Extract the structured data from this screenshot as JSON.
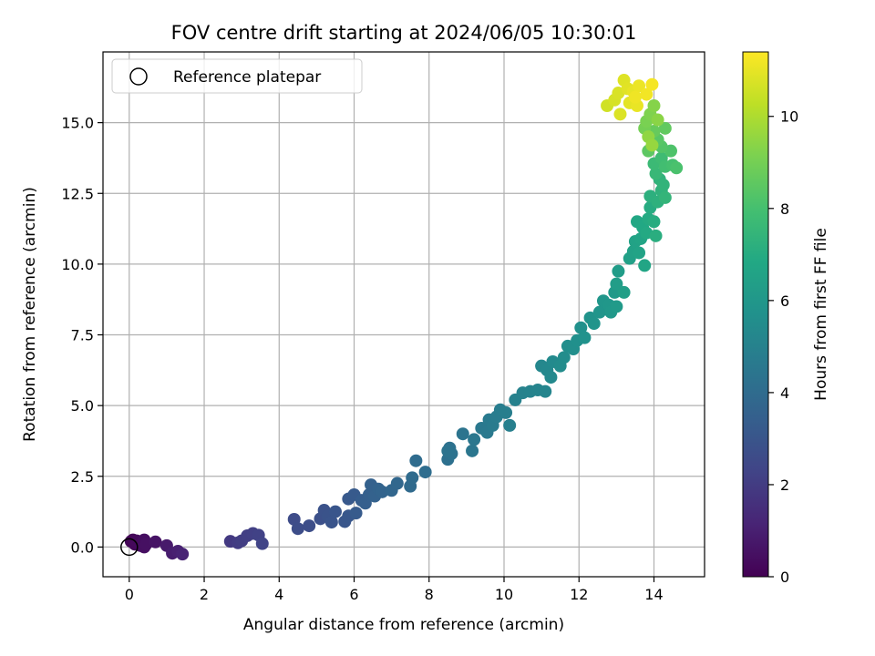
{
  "chart_data": {
    "type": "scatter",
    "title": "FOV centre drift starting at 2024/06/05 10:30:01",
    "xlabel": "Angular distance from reference (arcmin)",
    "ylabel": "Rotation from reference (arcmin)",
    "xlim": [
      -0.7,
      15.35
    ],
    "ylim": [
      -1.05,
      17.5
    ],
    "xticks": [
      0,
      2,
      4,
      6,
      8,
      10,
      12,
      14
    ],
    "xtick_labels": [
      "0",
      "2",
      "4",
      "6",
      "8",
      "10",
      "12",
      "14"
    ],
    "yticks": [
      0.0,
      2.5,
      5.0,
      7.5,
      10.0,
      12.5,
      15.0
    ],
    "ytick_labels": [
      "0.0",
      "2.5",
      "5.0",
      "7.5",
      "10.0",
      "12.5",
      "15.0"
    ],
    "grid": true,
    "legend": {
      "placement": "top-left",
      "entries": [
        "Reference platepar"
      ]
    },
    "reference_point": {
      "x": 0.0,
      "y": 0.0,
      "marker": "open-circle",
      "edge_color": "#000000"
    },
    "colormap": "viridis",
    "colorbar": {
      "label": "Hours from first FF file",
      "min": 0,
      "max": 11.4,
      "ticks": [
        0,
        2,
        4,
        6,
        8,
        10
      ],
      "tick_labels": [
        "0",
        "2",
        "4",
        "6",
        "8",
        "10"
      ]
    },
    "points": [
      {
        "x": 0.05,
        "y": 0.2,
        "c": 0.1
      },
      {
        "x": 0.1,
        "y": 0.25,
        "c": 0.15
      },
      {
        "x": 0.15,
        "y": 0.1,
        "c": 0.2
      },
      {
        "x": 0.2,
        "y": 0.22,
        "c": 0.25
      },
      {
        "x": 0.3,
        "y": 0.05,
        "c": 0.3
      },
      {
        "x": 0.35,
        "y": 0.15,
        "c": 0.35
      },
      {
        "x": 0.4,
        "y": 0.25,
        "c": 0.4
      },
      {
        "x": 0.4,
        "y": 0.0,
        "c": 0.45
      },
      {
        "x": 0.45,
        "y": 0.1,
        "c": 0.5
      },
      {
        "x": 0.7,
        "y": 0.18,
        "c": 0.6
      },
      {
        "x": 1.0,
        "y": 0.05,
        "c": 0.8
      },
      {
        "x": 1.15,
        "y": -0.22,
        "c": 0.9
      },
      {
        "x": 1.3,
        "y": -0.15,
        "c": 1.0
      },
      {
        "x": 1.42,
        "y": -0.25,
        "c": 1.1
      },
      {
        "x": 2.7,
        "y": 0.2,
        "c": 1.9
      },
      {
        "x": 2.9,
        "y": 0.15,
        "c": 2.0
      },
      {
        "x": 3.0,
        "y": 0.22,
        "c": 2.05
      },
      {
        "x": 3.15,
        "y": 0.4,
        "c": 2.1
      },
      {
        "x": 3.3,
        "y": 0.48,
        "c": 2.15
      },
      {
        "x": 3.45,
        "y": 0.42,
        "c": 2.2
      },
      {
        "x": 3.55,
        "y": 0.12,
        "c": 2.3
      },
      {
        "x": 4.4,
        "y": 0.98,
        "c": 2.6
      },
      {
        "x": 4.5,
        "y": 0.65,
        "c": 2.65
      },
      {
        "x": 4.8,
        "y": 0.75,
        "c": 2.7
      },
      {
        "x": 5.1,
        "y": 1.0,
        "c": 2.8
      },
      {
        "x": 5.2,
        "y": 1.3,
        "c": 2.85
      },
      {
        "x": 5.3,
        "y": 1.1,
        "c": 2.9
      },
      {
        "x": 5.4,
        "y": 0.88,
        "c": 2.95
      },
      {
        "x": 5.5,
        "y": 1.25,
        "c": 3.0
      },
      {
        "x": 5.75,
        "y": 0.9,
        "c": 3.05
      },
      {
        "x": 5.85,
        "y": 1.1,
        "c": 3.1
      },
      {
        "x": 5.85,
        "y": 1.7,
        "c": 3.15
      },
      {
        "x": 6.0,
        "y": 1.85,
        "c": 3.2
      },
      {
        "x": 6.05,
        "y": 1.2,
        "c": 3.25
      },
      {
        "x": 6.2,
        "y": 1.65,
        "c": 3.35
      },
      {
        "x": 6.3,
        "y": 1.55,
        "c": 3.4
      },
      {
        "x": 6.4,
        "y": 1.85,
        "c": 3.45
      },
      {
        "x": 6.45,
        "y": 2.2,
        "c": 3.5
      },
      {
        "x": 6.55,
        "y": 1.8,
        "c": 3.55
      },
      {
        "x": 6.65,
        "y": 2.05,
        "c": 3.6
      },
      {
        "x": 6.75,
        "y": 1.95,
        "c": 3.65
      },
      {
        "x": 7.0,
        "y": 2.0,
        "c": 3.75
      },
      {
        "x": 7.15,
        "y": 2.25,
        "c": 3.8
      },
      {
        "x": 7.5,
        "y": 2.15,
        "c": 3.9
      },
      {
        "x": 7.55,
        "y": 2.45,
        "c": 3.95
      },
      {
        "x": 7.65,
        "y": 3.05,
        "c": 4.0
      },
      {
        "x": 7.9,
        "y": 2.65,
        "c": 4.05
      },
      {
        "x": 8.5,
        "y": 3.1,
        "c": 4.2
      },
      {
        "x": 8.55,
        "y": 3.5,
        "c": 4.25
      },
      {
        "x": 8.6,
        "y": 3.3,
        "c": 4.3
      },
      {
        "x": 8.5,
        "y": 3.4,
        "c": 4.32
      },
      {
        "x": 8.9,
        "y": 4.0,
        "c": 4.4
      },
      {
        "x": 9.15,
        "y": 3.4,
        "c": 4.45
      },
      {
        "x": 9.2,
        "y": 3.8,
        "c": 4.5
      },
      {
        "x": 9.4,
        "y": 4.2,
        "c": 4.55
      },
      {
        "x": 9.55,
        "y": 4.05,
        "c": 4.6
      },
      {
        "x": 9.6,
        "y": 4.5,
        "c": 4.65
      },
      {
        "x": 9.7,
        "y": 4.3,
        "c": 4.7
      },
      {
        "x": 9.8,
        "y": 4.6,
        "c": 4.75
      },
      {
        "x": 9.9,
        "y": 4.85,
        "c": 4.8
      },
      {
        "x": 10.05,
        "y": 4.75,
        "c": 4.85
      },
      {
        "x": 10.15,
        "y": 4.3,
        "c": 4.9
      },
      {
        "x": 10.3,
        "y": 5.2,
        "c": 4.95
      },
      {
        "x": 10.5,
        "y": 5.45,
        "c": 5.0
      },
      {
        "x": 10.7,
        "y": 5.5,
        "c": 5.05
      },
      {
        "x": 10.9,
        "y": 5.55,
        "c": 5.1
      },
      {
        "x": 11.1,
        "y": 5.5,
        "c": 5.15
      },
      {
        "x": 11.0,
        "y": 6.4,
        "c": 5.25
      },
      {
        "x": 11.15,
        "y": 6.25,
        "c": 5.3
      },
      {
        "x": 11.25,
        "y": 6.0,
        "c": 5.35
      },
      {
        "x": 11.3,
        "y": 6.55,
        "c": 5.4
      },
      {
        "x": 11.5,
        "y": 6.4,
        "c": 5.45
      },
      {
        "x": 11.6,
        "y": 6.7,
        "c": 5.5
      },
      {
        "x": 11.7,
        "y": 7.1,
        "c": 5.55
      },
      {
        "x": 11.85,
        "y": 7.0,
        "c": 5.6
      },
      {
        "x": 11.95,
        "y": 7.3,
        "c": 5.65
      },
      {
        "x": 12.05,
        "y": 7.75,
        "c": 5.7
      },
      {
        "x": 12.15,
        "y": 7.4,
        "c": 5.75
      },
      {
        "x": 12.3,
        "y": 8.1,
        "c": 5.8
      },
      {
        "x": 12.4,
        "y": 7.9,
        "c": 5.85
      },
      {
        "x": 12.55,
        "y": 8.3,
        "c": 5.9
      },
      {
        "x": 12.65,
        "y": 8.7,
        "c": 5.95
      },
      {
        "x": 12.8,
        "y": 8.55,
        "c": 6.0
      },
      {
        "x": 12.85,
        "y": 8.3,
        "c": 6.05
      },
      {
        "x": 12.95,
        "y": 9.0,
        "c": 6.1
      },
      {
        "x": 13.0,
        "y": 8.5,
        "c": 6.15
      },
      {
        "x": 13.05,
        "y": 9.75,
        "c": 6.25
      },
      {
        "x": 13.0,
        "y": 9.3,
        "c": 6.3
      },
      {
        "x": 13.2,
        "y": 9.0,
        "c": 6.35
      },
      {
        "x": 13.35,
        "y": 10.2,
        "c": 6.45
      },
      {
        "x": 13.45,
        "y": 10.45,
        "c": 6.5
      },
      {
        "x": 13.5,
        "y": 10.8,
        "c": 6.55
      },
      {
        "x": 13.6,
        "y": 10.4,
        "c": 6.6
      },
      {
        "x": 13.65,
        "y": 10.9,
        "c": 6.65
      },
      {
        "x": 13.75,
        "y": 9.95,
        "c": 6.7
      },
      {
        "x": 13.55,
        "y": 11.5,
        "c": 6.8
      },
      {
        "x": 13.7,
        "y": 11.3,
        "c": 6.85
      },
      {
        "x": 13.8,
        "y": 11.1,
        "c": 6.9
      },
      {
        "x": 13.85,
        "y": 11.6,
        "c": 6.95
      },
      {
        "x": 13.9,
        "y": 12.0,
        "c": 7.0
      },
      {
        "x": 14.0,
        "y": 11.5,
        "c": 7.05
      },
      {
        "x": 14.05,
        "y": 11.0,
        "c": 7.1
      },
      {
        "x": 13.9,
        "y": 12.4,
        "c": 7.2
      },
      {
        "x": 14.1,
        "y": 12.2,
        "c": 7.25
      },
      {
        "x": 14.2,
        "y": 12.6,
        "c": 7.3
      },
      {
        "x": 14.15,
        "y": 13.0,
        "c": 7.35
      },
      {
        "x": 14.25,
        "y": 12.8,
        "c": 7.4
      },
      {
        "x": 14.3,
        "y": 12.35,
        "c": 7.45
      },
      {
        "x": 14.05,
        "y": 13.2,
        "c": 7.6
      },
      {
        "x": 14.0,
        "y": 13.55,
        "c": 7.7
      },
      {
        "x": 14.2,
        "y": 13.75,
        "c": 7.8
      },
      {
        "x": 14.3,
        "y": 13.45,
        "c": 7.9
      },
      {
        "x": 14.5,
        "y": 13.5,
        "c": 8.0
      },
      {
        "x": 14.6,
        "y": 13.4,
        "c": 8.1
      },
      {
        "x": 14.45,
        "y": 14.0,
        "c": 8.2
      },
      {
        "x": 14.2,
        "y": 14.15,
        "c": 8.3
      },
      {
        "x": 14.1,
        "y": 14.4,
        "c": 8.4
      },
      {
        "x": 13.85,
        "y": 14.0,
        "c": 8.5
      },
      {
        "x": 14.3,
        "y": 14.8,
        "c": 8.6
      },
      {
        "x": 14.0,
        "y": 14.7,
        "c": 8.7
      },
      {
        "x": 13.75,
        "y": 14.8,
        "c": 9.0
      },
      {
        "x": 13.8,
        "y": 15.05,
        "c": 9.1
      },
      {
        "x": 13.9,
        "y": 15.3,
        "c": 9.2
      },
      {
        "x": 14.0,
        "y": 15.6,
        "c": 9.3
      },
      {
        "x": 14.1,
        "y": 15.1,
        "c": 9.4
      },
      {
        "x": 13.85,
        "y": 14.5,
        "c": 9.5
      },
      {
        "x": 13.95,
        "y": 14.2,
        "c": 9.6
      },
      {
        "x": 12.75,
        "y": 15.6,
        "c": 10.6
      },
      {
        "x": 12.95,
        "y": 15.8,
        "c": 10.7
      },
      {
        "x": 13.05,
        "y": 16.05,
        "c": 10.75
      },
      {
        "x": 13.1,
        "y": 15.3,
        "c": 10.8
      },
      {
        "x": 13.2,
        "y": 16.5,
        "c": 10.85
      },
      {
        "x": 13.3,
        "y": 16.2,
        "c": 10.9
      },
      {
        "x": 13.35,
        "y": 15.7,
        "c": 10.95
      },
      {
        "x": 13.45,
        "y": 16.1,
        "c": 11.0
      },
      {
        "x": 13.55,
        "y": 15.6,
        "c": 11.05
      },
      {
        "x": 13.6,
        "y": 16.3,
        "c": 11.1
      },
      {
        "x": 13.5,
        "y": 15.9,
        "c": 11.15
      },
      {
        "x": 13.8,
        "y": 16.0,
        "c": 11.2
      },
      {
        "x": 13.95,
        "y": 16.35,
        "c": 11.25
      }
    ]
  }
}
